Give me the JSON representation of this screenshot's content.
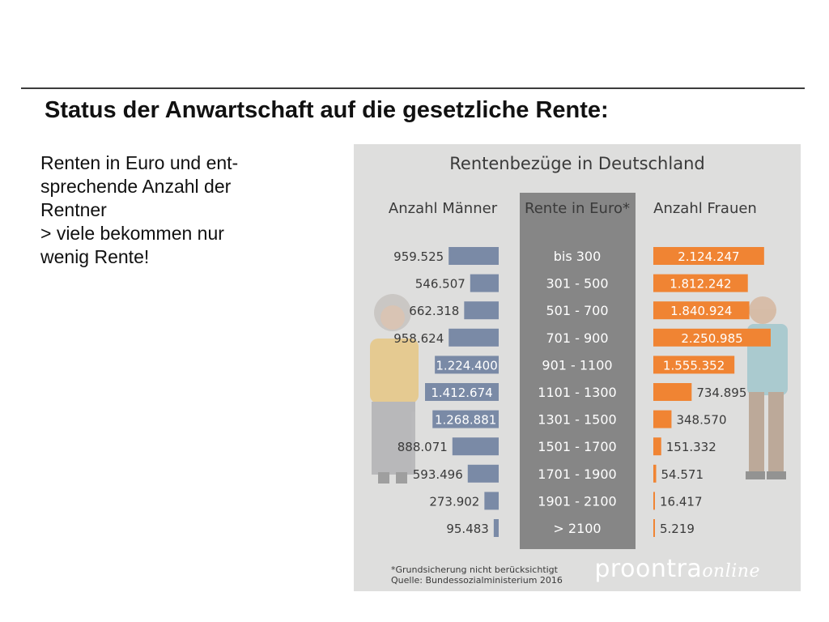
{
  "slide": {
    "title": "Status der Anwartschaft auf die gesetzliche Rente:",
    "body_lines": [
      "Renten in Euro und ent-",
      "sprechende Anzahl der",
      "Rentner",
      " > viele bekommen nur",
      "wenig Rente!"
    ]
  },
  "chart_data": {
    "type": "bar",
    "title": "Rentenbezüge in Deutschland",
    "column_headers": {
      "left": "Anzahl Männer",
      "center": "Rente in Euro*",
      "right": "Anzahl Frauen"
    },
    "categories": [
      "bis 300",
      "301 - 500",
      "501 - 700",
      "701 - 900",
      "901 - 1100",
      "1101 - 1300",
      "1301 - 1500",
      "1501 - 1700",
      "1701 - 1900",
      "1901 - 2100",
      "> 2100"
    ],
    "series": [
      {
        "name": "Anzahl Männer",
        "values": [
          959525,
          546507,
          662318,
          958624,
          1224400,
          1412674,
          1268881,
          888071,
          593496,
          273902,
          95483
        ],
        "labels": [
          "959.525",
          "546.507",
          "662.318",
          "958.624",
          "1.224.400",
          "1.412.674",
          "1.268.881",
          "888.071",
          "593.496",
          "273.902",
          "95.483"
        ],
        "color": "#7a8aa6"
      },
      {
        "name": "Anzahl Frauen",
        "values": [
          2124247,
          1812242,
          1840924,
          2250985,
          1555352,
          734895,
          348570,
          151332,
          54571,
          16417,
          5219
        ],
        "labels": [
          "2.124.247",
          "1.812.242",
          "1.840.924",
          "2.250.985",
          "1.555.352",
          "734.895",
          "348.570",
          "151.332",
          "54.571",
          "16.417",
          "5.219"
        ],
        "color": "#f08433"
      }
    ],
    "footnote": "*Grundsicherung nicht berücksichtigt",
    "source": "Quelle: Bundessozialministerium 2016",
    "brand": {
      "main": "proontra",
      "sub": "online"
    },
    "colors": {
      "background": "#dededd",
      "center_column": "#868686",
      "text_dark": "#3a3a3a"
    }
  }
}
